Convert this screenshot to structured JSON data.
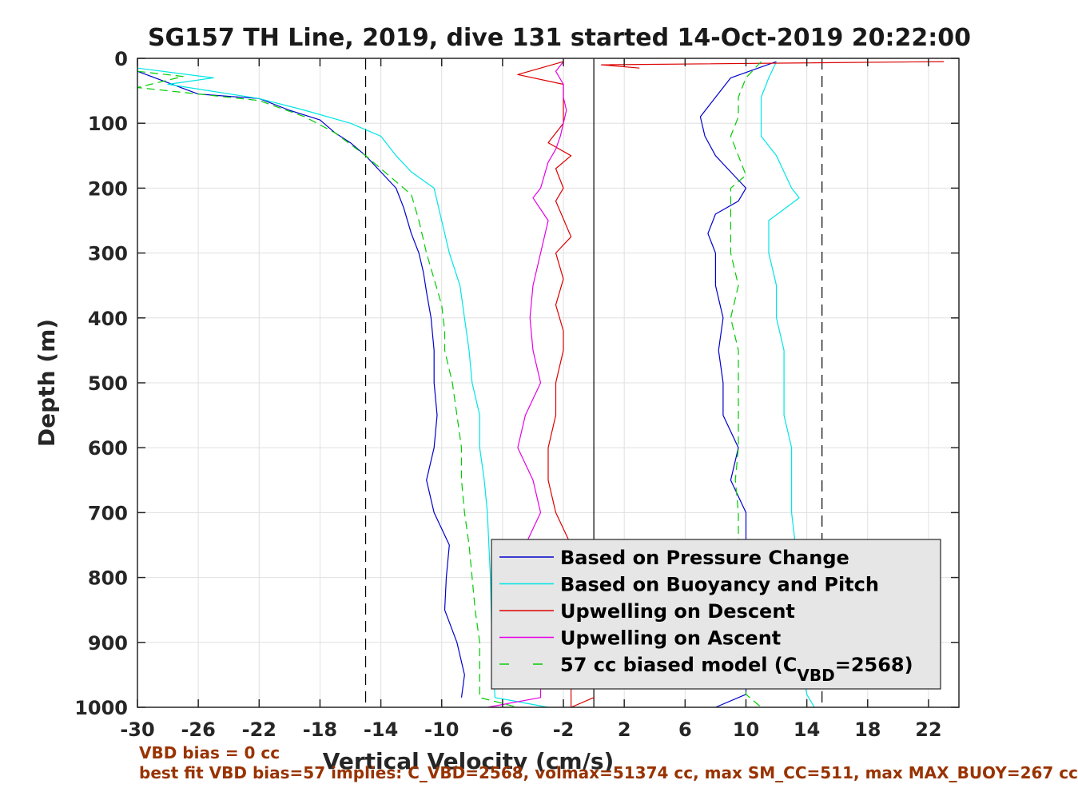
{
  "chart_data": {
    "type": "line",
    "title": "SG157 TH Line, 2019, dive 131 started 14-Oct-2019 20:22:00",
    "xlabel": "Vertical Velocity (cm/s)",
    "ylabel": "Depth (m)",
    "xlim": [
      -30,
      24
    ],
    "ylim": [
      0,
      1000
    ],
    "y_reversed": true,
    "grid": true,
    "xticks": [
      -30,
      -26,
      -22,
      -18,
      -14,
      -10,
      -6,
      -2,
      2,
      6,
      10,
      14,
      18,
      22
    ],
    "yticks": [
      0,
      100,
      200,
      300,
      400,
      500,
      600,
      700,
      800,
      900,
      1000
    ],
    "reference_lines": [
      {
        "orientation": "vertical",
        "x": 0,
        "style": "solid"
      },
      {
        "orientation": "vertical",
        "x": -15,
        "style": "dashed"
      },
      {
        "orientation": "vertical",
        "x": 15,
        "style": "dashed"
      }
    ],
    "legend_position": "bottom-right",
    "series": [
      {
        "name": "Based on Pressure Change",
        "color": "#0000cc",
        "style": "solid",
        "segments": [
          [
            [
              -30,
              20
            ],
            [
              -26,
              55
            ],
            [
              -22,
              62
            ],
            [
              -20,
              80
            ],
            [
              -18,
              95
            ],
            [
              -17,
              115
            ],
            [
              -16,
              130
            ],
            [
              -15,
              150
            ],
            [
              -14,
              175
            ],
            [
              -13,
              200
            ],
            [
              -12.5,
              230
            ],
            [
              -12,
              270
            ],
            [
              -11.5,
              300
            ],
            [
              -11.2,
              330
            ],
            [
              -11,
              360
            ],
            [
              -10.7,
              400
            ],
            [
              -10.5,
              450
            ],
            [
              -10.5,
              500
            ],
            [
              -10.3,
              550
            ],
            [
              -10.5,
              600
            ],
            [
              -11,
              650
            ],
            [
              -10.5,
              700
            ],
            [
              -9.5,
              750
            ],
            [
              -9.7,
              800
            ],
            [
              -9.8,
              850
            ],
            [
              -9,
              900
            ],
            [
              -8.5,
              950
            ],
            [
              -8.7,
              985
            ]
          ],
          [
            [
              12,
              5
            ],
            [
              9,
              30
            ],
            [
              8,
              60
            ],
            [
              7,
              90
            ],
            [
              7.3,
              120
            ],
            [
              8,
              150
            ],
            [
              9,
              175
            ],
            [
              10,
              200
            ],
            [
              9.5,
              220
            ],
            [
              8,
              240
            ],
            [
              7.5,
              270
            ],
            [
              8,
              300
            ],
            [
              8,
              350
            ],
            [
              8.5,
              400
            ],
            [
              8.2,
              450
            ],
            [
              8.5,
              500
            ],
            [
              8.5,
              550
            ],
            [
              9.5,
              600
            ],
            [
              9,
              650
            ],
            [
              10,
              700
            ],
            [
              10,
              800
            ],
            [
              10,
              900
            ],
            [
              10,
              980
            ],
            [
              8,
              1000
            ]
          ]
        ]
      },
      {
        "name": "Based on Buoyancy and Pitch",
        "color": "#00e5e5",
        "style": "solid",
        "segments": [
          [
            [
              -30,
              15
            ],
            [
              -25,
              30
            ],
            [
              -28,
              40
            ],
            [
              -22,
              62
            ],
            [
              -19,
              80
            ],
            [
              -16,
              100
            ],
            [
              -14,
              120
            ],
            [
              -13,
              150
            ],
            [
              -12,
              175
            ],
            [
              -10.5,
              200
            ],
            [
              -10,
              250
            ],
            [
              -9.5,
              300
            ],
            [
              -8.8,
              350
            ],
            [
              -8.5,
              400
            ],
            [
              -8.2,
              450
            ],
            [
              -8,
              500
            ],
            [
              -7.5,
              550
            ],
            [
              -7.5,
              600
            ],
            [
              -7.2,
              650
            ],
            [
              -7,
              700
            ],
            [
              -6.8,
              800
            ],
            [
              -6.7,
              900
            ],
            [
              -6.5,
              985
            ],
            [
              -3,
              1000
            ]
          ],
          [
            [
              12,
              5
            ],
            [
              11.5,
              30
            ],
            [
              11,
              60
            ],
            [
              11,
              90
            ],
            [
              11,
              120
            ],
            [
              12,
              150
            ],
            [
              13,
              200
            ],
            [
              13.5,
              215
            ],
            [
              11.5,
              250
            ],
            [
              11.5,
              300
            ],
            [
              12,
              350
            ],
            [
              12,
              400
            ],
            [
              12.5,
              450
            ],
            [
              12.5,
              500
            ],
            [
              12.5,
              550
            ],
            [
              13,
              600
            ],
            [
              13,
              650
            ],
            [
              13,
              700
            ],
            [
              13.5,
              800
            ],
            [
              13.5,
              900
            ],
            [
              14,
              980
            ],
            [
              14.5,
              1000
            ]
          ]
        ]
      },
      {
        "name": "Upwelling on Descent",
        "color": "#dd0000",
        "style": "solid",
        "segments": [
          [
            [
              -2,
              5
            ],
            [
              -5,
              25
            ],
            [
              -2,
              40
            ],
            [
              -2,
              70
            ],
            [
              -2,
              100
            ],
            [
              -3,
              130
            ],
            [
              -1.5,
              150
            ],
            [
              -2.5,
              170
            ],
            [
              -2,
              200
            ],
            [
              -2.5,
              220
            ],
            [
              -1.5,
              275
            ],
            [
              -2.5,
              300
            ],
            [
              -2,
              340
            ],
            [
              -2.5,
              380
            ],
            [
              -2,
              420
            ],
            [
              -2,
              450
            ],
            [
              -2.5,
              500
            ],
            [
              -2.5,
              550
            ],
            [
              -3,
              600
            ],
            [
              -3,
              650
            ],
            [
              -2.5,
              700
            ],
            [
              -1.5,
              750
            ],
            [
              -2,
              800
            ],
            [
              -2.5,
              850
            ],
            [
              -2,
              900
            ],
            [
              -1.5,
              950
            ],
            [
              -1.5,
              1000
            ],
            [
              0,
              985
            ]
          ],
          [
            [
              23,
              5
            ],
            [
              0.5,
              10
            ],
            [
              3,
              15
            ]
          ]
        ]
      },
      {
        "name": "Upwelling on Ascent",
        "color": "#e600e6",
        "style": "solid",
        "segments": [
          [
            [
              -2,
              5
            ],
            [
              -2.5,
              20
            ],
            [
              -2,
              40
            ],
            [
              -2,
              60
            ],
            [
              -1.8,
              80
            ],
            [
              -2,
              100
            ],
            [
              -2.2,
              120
            ],
            [
              -2.5,
              140
            ],
            [
              -3,
              160
            ],
            [
              -3.5,
              200
            ],
            [
              -4,
              215
            ],
            [
              -3,
              250
            ],
            [
              -3.5,
              300
            ],
            [
              -4,
              350
            ],
            [
              -4.2,
              400
            ],
            [
              -4,
              450
            ],
            [
              -3.5,
              500
            ],
            [
              -4.5,
              550
            ],
            [
              -5,
              600
            ],
            [
              -4,
              650
            ],
            [
              -3.5,
              700
            ],
            [
              -4.5,
              750
            ],
            [
              -5,
              800
            ],
            [
              -4.5,
              850
            ],
            [
              -4,
              900
            ],
            [
              -3.5,
              950
            ],
            [
              -3.5,
              985
            ],
            [
              -7,
              1000
            ]
          ]
        ]
      },
      {
        "name": "57 cc biased model (C_VBD=2568)",
        "color": "#00cc00",
        "style": "dashed",
        "segments": [
          [
            [
              -30,
              20
            ],
            [
              -27,
              28
            ],
            [
              -30,
              45
            ],
            [
              -22,
              65
            ],
            [
              -19,
              90
            ],
            [
              -17,
              115
            ],
            [
              -15,
              150
            ],
            [
              -13.5,
              180
            ],
            [
              -12,
              210
            ],
            [
              -11.5,
              250
            ],
            [
              -11,
              300
            ],
            [
              -10.5,
              340
            ],
            [
              -10,
              380
            ],
            [
              -9.8,
              420
            ],
            [
              -9.8,
              450
            ],
            [
              -9.3,
              500
            ],
            [
              -9,
              550
            ],
            [
              -8.7,
              600
            ],
            [
              -8.7,
              650
            ],
            [
              -8.5,
              700
            ],
            [
              -8.2,
              750
            ],
            [
              -8,
              800
            ],
            [
              -7.8,
              850
            ],
            [
              -7.5,
              900
            ],
            [
              -7.5,
              985
            ],
            [
              -5,
              1000
            ]
          ],
          [
            [
              11,
              5
            ],
            [
              10,
              30
            ],
            [
              9.5,
              60
            ],
            [
              9.5,
              90
            ],
            [
              9,
              120
            ],
            [
              9.5,
              150
            ],
            [
              10,
              180
            ],
            [
              9,
              200
            ],
            [
              9,
              230
            ],
            [
              9,
              260
            ],
            [
              9,
              300
            ],
            [
              9.5,
              350
            ],
            [
              9,
              400
            ],
            [
              9.5,
              450
            ],
            [
              9.5,
              500
            ],
            [
              9.5,
              550
            ],
            [
              9.5,
              600
            ],
            [
              9.3,
              650
            ],
            [
              9.5,
              700
            ],
            [
              9.5,
              800
            ],
            [
              10,
              900
            ],
            [
              10,
              980
            ],
            [
              11,
              1000
            ]
          ]
        ]
      }
    ],
    "legend": [
      {
        "label": "Based on Pressure Change",
        "color": "#0000cc",
        "dash": false,
        "sub": ""
      },
      {
        "label": "Based on Buoyancy and Pitch",
        "color": "#00e5e5",
        "dash": false,
        "sub": ""
      },
      {
        "label": "Upwelling on Descent",
        "color": "#dd0000",
        "dash": false,
        "sub": ""
      },
      {
        "label": "Upwelling on Ascent",
        "color": "#e600e6",
        "dash": false,
        "sub": ""
      },
      {
        "label": "57 cc biased model (C",
        "color": "#00cc00",
        "dash": true,
        "sub": "VBD",
        "tail": "=2568)"
      }
    ]
  },
  "footnotes": {
    "line1": "VBD bias = 0 cc",
    "line2": "best fit VBD bias=57 implies: C_VBD=2568, volmax=51374 cc, max SM_CC=511, max MAX_BUOY=267 cc"
  }
}
